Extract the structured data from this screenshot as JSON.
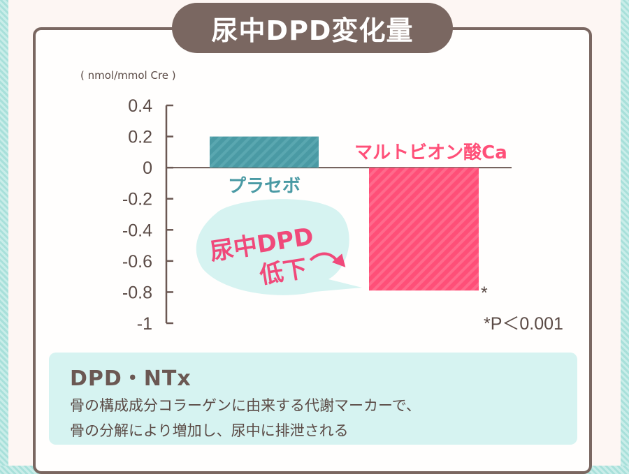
{
  "title": "尿中DPD変化量",
  "callout": {
    "line1": "尿中DPD",
    "line2": "低下"
  },
  "chart_data": {
    "type": "bar",
    "ylabel": "( nmol/mmol Cre )",
    "ylim": [
      -1,
      0.4
    ],
    "yticks": [
      0.4,
      0.2,
      0,
      -0.2,
      -0.4,
      -0.6,
      -0.8,
      -1
    ],
    "ytick_labels": [
      "0.4",
      "0.2",
      "0",
      "-0.2",
      "-0.4",
      "-0.6",
      "-0.8",
      "-1"
    ],
    "categories": [
      "プラセボ",
      "マルトビオン酸Ca"
    ],
    "values": [
      0.2,
      -0.79
    ],
    "colors": [
      "#4a9aa4",
      "#ff4f78"
    ],
    "significance_mark": "*",
    "significance_note": "*P＜0.001"
  },
  "note": {
    "title": "DPD・NTx",
    "line1": "骨の構成成分コラーゲンに由来する代謝マーカーで、",
    "line2": "骨の分解により増加し、尿中に排泄される"
  }
}
